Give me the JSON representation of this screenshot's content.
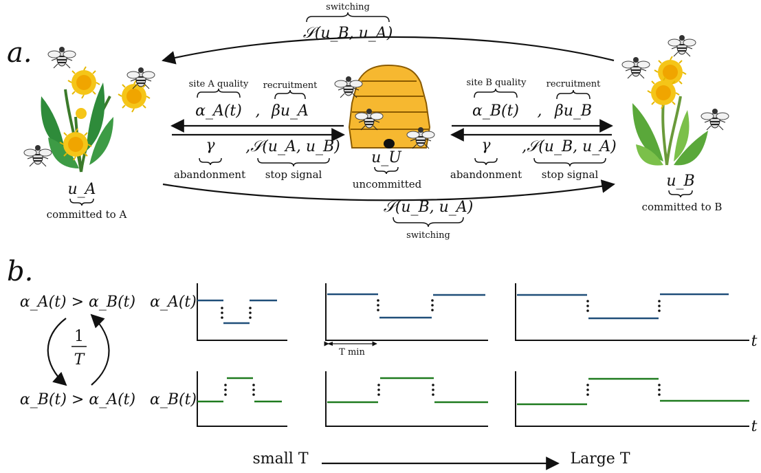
{
  "panel_a": {
    "label": "a.",
    "top_switch": {
      "caption": "switching",
      "formula": "𝒮(u_B, u_A)"
    },
    "bottom_switch": {
      "caption": "switching",
      "formula": "𝒮(u_B, u_A)"
    },
    "left_node": {
      "symbol": "u_A",
      "caption": "committed to A"
    },
    "right_node": {
      "symbol": "u_B",
      "caption": "committed to B"
    },
    "center_node": {
      "symbol": "u_U",
      "caption": "uncommitted"
    },
    "left_upper": {
      "quality_caption": "site A quality",
      "quality_formula": "α_A(t)",
      "comma": ",",
      "recruit_caption": "recruitment",
      "recruit_formula": "βu_A"
    },
    "left_lower": {
      "abandon_formula": "γ",
      "abandon_caption": "abandonment",
      "stop_formula": ",𝒮(u_A, u_B)",
      "stop_caption": "stop signal"
    },
    "right_upper": {
      "quality_caption": "site B quality",
      "quality_formula": "α_B(t)",
      "comma": ",",
      "recruit_caption": "recruitment",
      "recruit_formula": "βu_B"
    },
    "right_lower": {
      "abandon_formula": "γ",
      "abandon_caption": "abandonment",
      "stop_formula": ",𝒮(u_B, u_A)",
      "stop_caption": "stop signal"
    }
  },
  "panel_b": {
    "label": "b.",
    "state_top": "α_A(t) > α_B(t)",
    "state_bottom": "α_B(t) > α_A(t)",
    "rate_num": "1",
    "rate_den": "T",
    "row_label_top": "α_A(t)",
    "row_label_bottom": "α_B(t)",
    "axis_t": "t",
    "period_label": "T min",
    "scale_left": "small T",
    "scale_right": "Large T"
  },
  "colors": {
    "alpha_A": "#1f4e79",
    "alpha_B": "#1e7a1e",
    "flower": "#f5c518",
    "hive": "#f6b830"
  },
  "icons": [
    "bee-icon",
    "dandelion-icon",
    "beehive-icon"
  ]
}
